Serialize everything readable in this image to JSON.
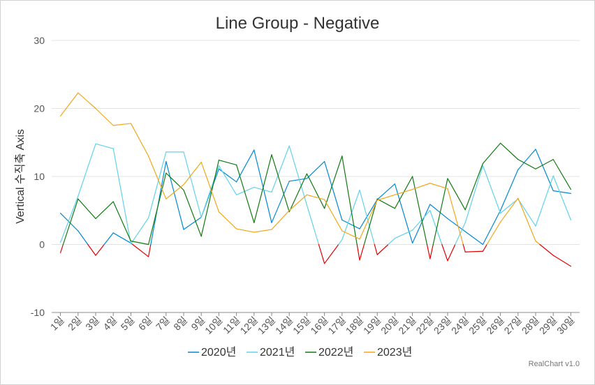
{
  "chart_data": {
    "type": "line",
    "title": "Line Group - Negative",
    "ylabel": "Vertical 수직축 Axis",
    "xlabel": "",
    "ylim": [
      -10,
      30
    ],
    "yticks": [
      -10,
      0,
      10,
      20,
      30
    ],
    "grid": true,
    "legend_position": "bottom",
    "negative_color": "#e00000",
    "categories": [
      "1일",
      "2일",
      "3일",
      "4일",
      "5일",
      "6일",
      "7일",
      "8일",
      "9일",
      "10일",
      "11일",
      "12일",
      "13일",
      "14일",
      "15일",
      "16일",
      "17일",
      "18일",
      "19일",
      "20일",
      "21일",
      "22일",
      "23일",
      "24일",
      "25일",
      "26일",
      "27일",
      "28일",
      "29일",
      "30일"
    ],
    "series": [
      {
        "name": "2020년",
        "color": "#0088d6",
        "values": [
          4.6,
          2.0,
          -1.6,
          1.7,
          0.2,
          -1.8,
          12.2,
          2.2,
          4.0,
          11.1,
          9.2,
          13.9,
          3.2,
          9.3,
          9.7,
          12.2,
          3.6,
          2.3,
          6.6,
          8.9,
          0.2,
          5.9,
          3.8,
          1.9,
          0.0,
          5.0,
          11.0,
          14.0,
          7.9,
          7.5
        ]
      },
      {
        "name": "2021년",
        "color": "#5fd3e8",
        "values": [
          0.3,
          7.1,
          14.8,
          14.1,
          0.1,
          3.9,
          13.6,
          13.6,
          4.0,
          11.6,
          7.3,
          8.4,
          7.7,
          14.5,
          5.8,
          -2.8,
          0.7,
          8.0,
          -1.5,
          0.9,
          2.1,
          5.0,
          -2.4,
          3.2,
          11.6,
          4.6,
          6.7,
          2.7,
          10.1,
          3.6
        ]
      },
      {
        "name": "2022년",
        "color": "#117a11",
        "values": [
          -1.2,
          6.7,
          3.8,
          6.3,
          0.5,
          0.0,
          10.5,
          8.0,
          1.2,
          12.4,
          11.7,
          3.2,
          13.2,
          4.8,
          10.4,
          5.3,
          13.0,
          -2.3,
          6.7,
          5.3,
          10.0,
          -2.1,
          9.7,
          5.1,
          11.9,
          14.9,
          12.5,
          11.1,
          12.5,
          8.1
        ]
      },
      {
        "name": "2023년",
        "color": "#f2a618",
        "values": [
          18.9,
          22.3,
          20.0,
          17.5,
          17.8,
          13.0,
          6.7,
          8.8,
          12.1,
          4.8,
          2.3,
          1.8,
          2.2,
          5.0,
          7.3,
          6.6,
          2.0,
          0.8,
          6.5,
          7.3,
          8.1,
          9.0,
          8.2,
          -1.1,
          -1.0,
          3.3,
          6.8,
          0.5,
          -1.6,
          -3.2
        ]
      }
    ]
  },
  "credit": "RealChart v1.0"
}
